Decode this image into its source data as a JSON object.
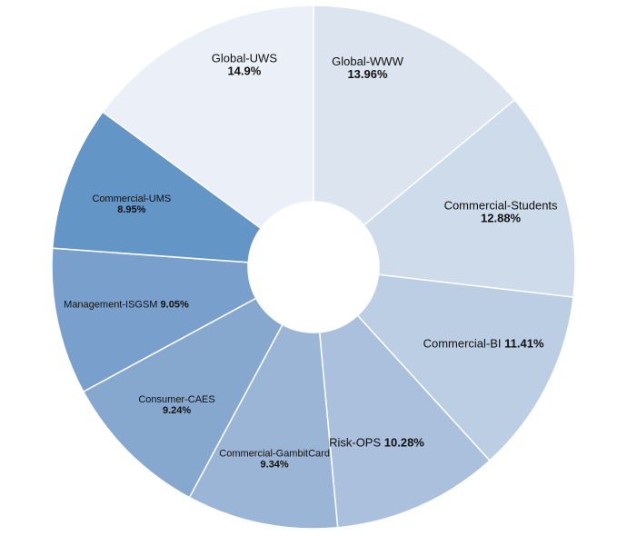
{
  "chart_data": {
    "type": "pie",
    "donut": true,
    "title": "",
    "slices": [
      {
        "label": "Global-WWW",
        "value": 13.96,
        "pct_text": "13.96%",
        "color": "#dce4ef"
      },
      {
        "label": "Commercial-Students",
        "value": 12.88,
        "pct_text": "12.88%",
        "color": "#cddbea"
      },
      {
        "label": "Commercial-BI",
        "value": 11.41,
        "pct_text": "11.41%",
        "color": "#bccee4"
      },
      {
        "label": "Risk-OPS",
        "value": 10.28,
        "pct_text": "10.28%",
        "color": "#aac0dc"
      },
      {
        "label": "Commercial-GambitCard",
        "value": 9.34,
        "pct_text": "9.34%",
        "color": "#9bb5d6"
      },
      {
        "label": "Consumer-CAES",
        "value": 9.24,
        "pct_text": "9.24%",
        "color": "#87a8ce"
      },
      {
        "label": "Management-ISGSM",
        "value": 9.05,
        "pct_text": "9.05%",
        "color": "#79a0cc"
      },
      {
        "label": "Commercial-UMS",
        "value": 8.95,
        "pct_text": "8.95%",
        "color": "#6395c6"
      },
      {
        "label": "Global-UWS",
        "value": 14.9,
        "pct_text": "14.9%",
        "color": "#ebeff7"
      }
    ],
    "legend": "none"
  }
}
